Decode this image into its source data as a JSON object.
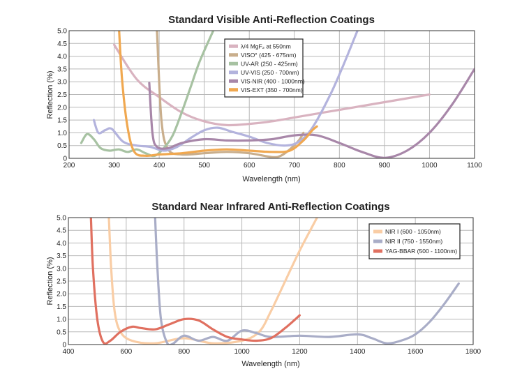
{
  "chart_data": [
    {
      "type": "line",
      "title": "Standard Visible Anti-Reflection Coatings",
      "xlabel": "Wavelength (nm)",
      "ylabel": "Reflection (%)",
      "xlim": [
        200,
        1100
      ],
      "ylim": [
        0,
        5
      ],
      "xticks": [
        200,
        300,
        400,
        500,
        600,
        700,
        800,
        900,
        1000,
        1100
      ],
      "xtick_labels": [
        "200",
        "300",
        "400",
        "500",
        "600",
        "700",
        "800",
        "900",
        "1000",
        "1100"
      ],
      "yticks": [
        0,
        0.5,
        1,
        1.5,
        2,
        2.5,
        3,
        3.5,
        4,
        4.5,
        5
      ],
      "ytick_labels": [
        "0",
        "0.5",
        "1.0",
        "1.5",
        "2.0",
        "2.5",
        "3.0",
        "3.5",
        "4.0",
        "4.5",
        "5.0"
      ],
      "grid": true,
      "legend_position": "top-center",
      "series": [
        {
          "name": "λ/4 MgF₂ at 550nm",
          "color": "#d9b3c0",
          "points": [
            [
              300,
              4.45
            ],
            [
              350,
              3.1
            ],
            [
              400,
              2.4
            ],
            [
              450,
              1.8
            ],
            [
              500,
              1.45
            ],
            [
              550,
              1.3
            ],
            [
              600,
              1.35
            ],
            [
              650,
              1.45
            ],
            [
              700,
              1.6
            ],
            [
              750,
              1.75
            ],
            [
              800,
              1.9
            ],
            [
              850,
              2.05
            ],
            [
              900,
              2.2
            ],
            [
              950,
              2.35
            ],
            [
              1000,
              2.5
            ]
          ]
        },
        {
          "name": "VISO° (425 - 675nm)",
          "color": "#c9ae8c",
          "points": [
            [
              395,
              5.0
            ],
            [
              405,
              1.5
            ],
            [
              420,
              0.35
            ],
            [
              450,
              0.15
            ],
            [
              500,
              0.2
            ],
            [
              550,
              0.25
            ],
            [
              600,
              0.2
            ],
            [
              650,
              0.05
            ],
            [
              670,
              0.1
            ],
            [
              690,
              0.35
            ],
            [
              710,
              0.7
            ],
            [
              720,
              1.0
            ]
          ]
        },
        {
          "name": "UV-AR (250 - 425nm)",
          "color": "#a7c2a2",
          "points": [
            [
              227,
              0.6
            ],
            [
              240,
              0.95
            ],
            [
              255,
              0.75
            ],
            [
              270,
              0.4
            ],
            [
              290,
              0.3
            ],
            [
              310,
              0.35
            ],
            [
              330,
              0.25
            ],
            [
              350,
              0.35
            ],
            [
              370,
              0.2
            ],
            [
              390,
              0.1
            ],
            [
              410,
              0.4
            ],
            [
              430,
              0.9
            ],
            [
              450,
              1.8
            ],
            [
              470,
              2.8
            ],
            [
              490,
              3.8
            ],
            [
              520,
              5.0
            ]
          ]
        },
        {
          "name": "UV-VIS (250 - 700nm)",
          "color": "#b3b3dd",
          "points": [
            [
              255,
              1.5
            ],
            [
              265,
              1.0
            ],
            [
              280,
              1.1
            ],
            [
              295,
              1.15
            ],
            [
              320,
              0.65
            ],
            [
              350,
              0.5
            ],
            [
              380,
              0.45
            ],
            [
              410,
              0.3
            ],
            [
              440,
              0.45
            ],
            [
              470,
              0.8
            ],
            [
              500,
              1.1
            ],
            [
              530,
              1.2
            ],
            [
              560,
              1.05
            ],
            [
              600,
              0.85
            ],
            [
              640,
              0.6
            ],
            [
              680,
              0.5
            ],
            [
              710,
              0.65
            ],
            [
              740,
              1.2
            ],
            [
              780,
              2.5
            ],
            [
              810,
              3.7
            ],
            [
              840,
              5.0
            ]
          ]
        },
        {
          "name": "VIS-NIR (400 - 1000nm)",
          "color": "#a887a9",
          "points": [
            [
              378,
              2.95
            ],
            [
              385,
              1.0
            ],
            [
              395,
              0.45
            ],
            [
              420,
              0.4
            ],
            [
              450,
              0.6
            ],
            [
              500,
              0.75
            ],
            [
              550,
              0.7
            ],
            [
              600,
              0.7
            ],
            [
              650,
              0.75
            ],
            [
              700,
              0.9
            ],
            [
              750,
              0.9
            ],
            [
              800,
              0.6
            ],
            [
              850,
              0.25
            ],
            [
              900,
              0.02
            ],
            [
              950,
              0.3
            ],
            [
              1000,
              1.0
            ],
            [
              1050,
              2.1
            ],
            [
              1100,
              3.5
            ]
          ]
        },
        {
          "name": "VIS-EXT (350 - 700nm)",
          "color": "#f0a850",
          "points": [
            [
              311,
              5.0
            ],
            [
              318,
              3.0
            ],
            [
              330,
              1.2
            ],
            [
              345,
              0.25
            ],
            [
              370,
              0.1
            ],
            [
              400,
              0.15
            ],
            [
              450,
              0.2
            ],
            [
              500,
              0.3
            ],
            [
              550,
              0.35
            ],
            [
              600,
              0.3
            ],
            [
              650,
              0.25
            ],
            [
              690,
              0.3
            ],
            [
              720,
              0.7
            ],
            [
              740,
              1.1
            ],
            [
              750,
              1.25
            ]
          ]
        }
      ]
    },
    {
      "type": "line",
      "title": "Standard Near Infrared Anti-Reflection Coatings",
      "xlabel": "Wavelength (nm)",
      "ylabel": "Reflection (%)",
      "xlim": [
        400,
        1800
      ],
      "ylim": [
        0,
        5
      ],
      "xticks": [
        400,
        600,
        800,
        1000,
        1200,
        1400,
        1600,
        1800
      ],
      "xtick_labels": [
        "400",
        "600",
        "800",
        "1000",
        "1200",
        "1400",
        "1600",
        "1800"
      ],
      "yticks": [
        0,
        0.5,
        1,
        1.5,
        2,
        2.5,
        3,
        3.5,
        4,
        4.5,
        5
      ],
      "ytick_labels": [
        "0",
        "0.5",
        "1.0",
        "1.5",
        "2.0",
        "2.5",
        "3.0",
        "3.5",
        "4.0",
        "4.5",
        "5.0"
      ],
      "grid": true,
      "legend_position": "top-right",
      "series": [
        {
          "name": "NIR I (600 - 1050nm)",
          "color": "#f9cda5",
          "points": [
            [
              540,
              5.0
            ],
            [
              548,
              3.0
            ],
            [
              560,
              1.3
            ],
            [
              580,
              0.5
            ],
            [
              620,
              0.15
            ],
            [
              700,
              0.05
            ],
            [
              800,
              0.25
            ],
            [
              900,
              0.05
            ],
            [
              1000,
              0.15
            ],
            [
              1060,
              0.5
            ],
            [
              1100,
              1.3
            ],
            [
              1150,
              2.5
            ],
            [
              1200,
              3.7
            ],
            [
              1260,
              5.0
            ]
          ]
        },
        {
          "name": "NIR II (750 - 1550nm)",
          "color": "#a9adc7",
          "points": [
            [
              700,
              5.0
            ],
            [
              708,
              3.0
            ],
            [
              720,
              1.0
            ],
            [
              740,
              0.1
            ],
            [
              760,
              0.02
            ],
            [
              800,
              0.35
            ],
            [
              850,
              0.15
            ],
            [
              900,
              0.3
            ],
            [
              950,
              0.15
            ],
            [
              1000,
              0.55
            ],
            [
              1050,
              0.45
            ],
            [
              1100,
              0.3
            ],
            [
              1200,
              0.35
            ],
            [
              1300,
              0.3
            ],
            [
              1400,
              0.4
            ],
            [
              1450,
              0.25
            ],
            [
              1500,
              0.05
            ],
            [
              1550,
              0.15
            ],
            [
              1600,
              0.4
            ],
            [
              1650,
              0.9
            ],
            [
              1700,
              1.6
            ],
            [
              1750,
              2.4
            ]
          ]
        },
        {
          "name": "YAG-BBAR (500 - 1100nm)",
          "color": "#e07060",
          "points": [
            [
              478,
              5.0
            ],
            [
              485,
              3.0
            ],
            [
              500,
              1.0
            ],
            [
              520,
              0.1
            ],
            [
              545,
              0.15
            ],
            [
              580,
              0.5
            ],
            [
              620,
              0.7
            ],
            [
              650,
              0.65
            ],
            [
              700,
              0.6
            ],
            [
              750,
              0.8
            ],
            [
              800,
              1.0
            ],
            [
              850,
              0.95
            ],
            [
              900,
              0.6
            ],
            [
              950,
              0.3
            ],
            [
              1000,
              0.2
            ],
            [
              1050,
              0.15
            ],
            [
              1100,
              0.25
            ],
            [
              1150,
              0.65
            ],
            [
              1200,
              1.15
            ]
          ]
        }
      ]
    }
  ]
}
